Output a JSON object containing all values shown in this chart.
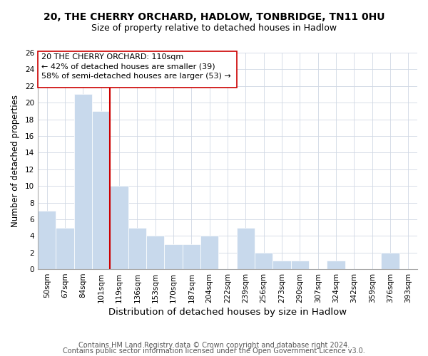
{
  "title": "20, THE CHERRY ORCHARD, HADLOW, TONBRIDGE, TN11 0HU",
  "subtitle": "Size of property relative to detached houses in Hadlow",
  "xlabel": "Distribution of detached houses by size in Hadlow",
  "ylabel": "Number of detached properties",
  "footer_lines": [
    "Contains HM Land Registry data © Crown copyright and database right 2024.",
    "Contains public sector information licensed under the Open Government Licence v3.0."
  ],
  "bar_labels": [
    "50sqm",
    "67sqm",
    "84sqm",
    "101sqm",
    "119sqm",
    "136sqm",
    "153sqm",
    "170sqm",
    "187sqm",
    "204sqm",
    "222sqm",
    "239sqm",
    "256sqm",
    "273sqm",
    "290sqm",
    "307sqm",
    "324sqm",
    "342sqm",
    "359sqm",
    "376sqm",
    "393sqm"
  ],
  "bar_values": [
    7,
    5,
    21,
    19,
    10,
    5,
    4,
    3,
    3,
    4,
    0,
    5,
    2,
    1,
    1,
    0,
    1,
    0,
    0,
    2,
    0
  ],
  "bar_color": "#c8d9ec",
  "grid_color": "#d0d8e4",
  "ylim": [
    0,
    26
  ],
  "yticks": [
    0,
    2,
    4,
    6,
    8,
    10,
    12,
    14,
    16,
    18,
    20,
    22,
    24,
    26
  ],
  "annotation_line1": "20 THE CHERRY ORCHARD: 110sqm",
  "annotation_line2": "← 42% of detached houses are smaller (39)",
  "annotation_line3": "58% of semi-detached houses are larger (53) →",
  "vline_x_index": 3.5,
  "vline_color": "#cc0000",
  "title_fontsize": 10,
  "subtitle_fontsize": 9,
  "xlabel_fontsize": 9.5,
  "ylabel_fontsize": 8.5,
  "tick_fontsize": 7.5,
  "annotation_fontsize": 8,
  "footer_fontsize": 7
}
